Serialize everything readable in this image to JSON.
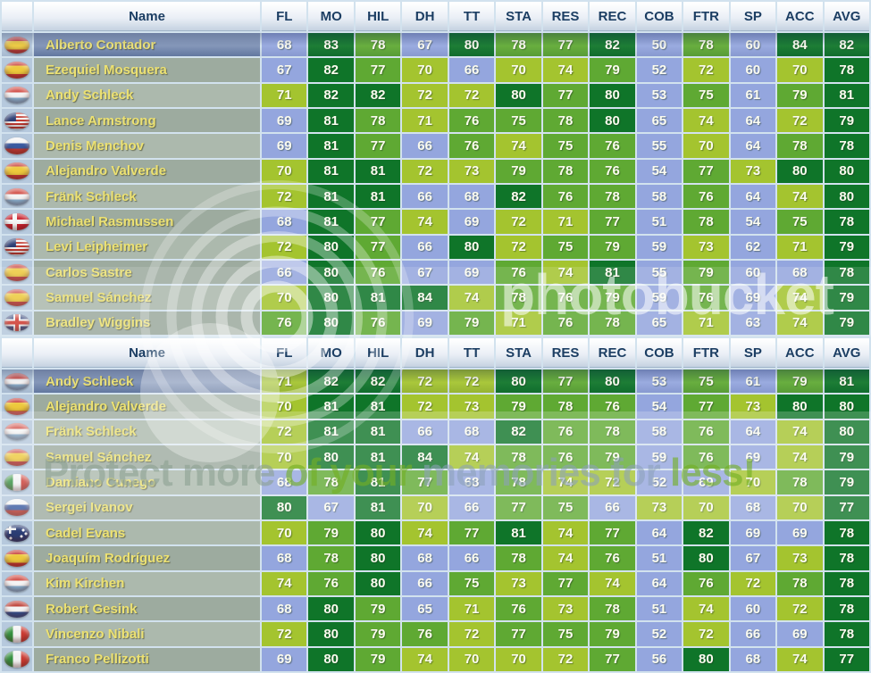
{
  "columns": [
    "Name",
    "FL",
    "MO",
    "HIL",
    "DH",
    "TT",
    "STA",
    "RES",
    "REC",
    "COB",
    "FTR",
    "SP",
    "ACC",
    "AVG"
  ],
  "stat_color_scale": [
    {
      "min": 80,
      "color": "#0f7529"
    },
    {
      "min": 75,
      "color": "#5fa933"
    },
    {
      "min": 70,
      "color": "#a4c42f"
    },
    {
      "min": 0,
      "color": "#94a6de"
    }
  ],
  "avg_column_color": "#0f7529",
  "ui_colors": {
    "header_text": "#1c3e63",
    "rider_name_text": "#ece172",
    "stat_text": "#fbfbef",
    "flag_column_bg": "#b6c9dd",
    "name_bg_light": "#acb9ad",
    "name_bg_dark": "#9dab9f",
    "selected_name_gradient_top": "#93a5c4",
    "selected_name_gradient_bottom": "#6a80a8",
    "grid_line": "#d2e2ee"
  },
  "tables": [
    {
      "rows": [
        {
          "rider": "Alberto Contador",
          "flag": "es",
          "selected": true,
          "stats": [
            68,
            83,
            78,
            67,
            80,
            78,
            77,
            82,
            50,
            78,
            60,
            84,
            82
          ]
        },
        {
          "rider": "Ezequiel Mosquera",
          "flag": "es",
          "selected": false,
          "stats": [
            67,
            82,
            77,
            70,
            66,
            70,
            74,
            79,
            52,
            72,
            60,
            70,
            78
          ]
        },
        {
          "rider": "Andy Schleck",
          "flag": "lu",
          "selected": false,
          "stats": [
            71,
            82,
            82,
            72,
            72,
            80,
            77,
            80,
            53,
            75,
            61,
            79,
            81
          ]
        },
        {
          "rider": "Lance Armstrong",
          "flag": "us",
          "selected": false,
          "stats": [
            69,
            81,
            78,
            71,
            76,
            75,
            78,
            80,
            65,
            74,
            64,
            72,
            79
          ]
        },
        {
          "rider": "Denis Menchov",
          "flag": "ru",
          "selected": false,
          "stats": [
            69,
            81,
            77,
            66,
            76,
            74,
            75,
            76,
            55,
            70,
            64,
            78,
            78
          ]
        },
        {
          "rider": "Alejandro Valverde",
          "flag": "es",
          "selected": false,
          "stats": [
            70,
            81,
            81,
            72,
            73,
            79,
            78,
            76,
            54,
            77,
            73,
            80,
            80
          ]
        },
        {
          "rider": "Fränk Schleck",
          "flag": "lu",
          "selected": false,
          "stats": [
            72,
            81,
            81,
            66,
            68,
            82,
            76,
            78,
            58,
            76,
            64,
            74,
            80
          ]
        },
        {
          "rider": "Michael Rasmussen",
          "flag": "dk",
          "selected": false,
          "stats": [
            68,
            81,
            77,
            74,
            69,
            72,
            71,
            77,
            51,
            78,
            54,
            75,
            78
          ]
        },
        {
          "rider": "Levi Leipheimer",
          "flag": "us",
          "selected": false,
          "stats": [
            72,
            80,
            77,
            66,
            80,
            72,
            75,
            79,
            59,
            73,
            62,
            71,
            79
          ]
        },
        {
          "rider": "Carlos Sastre",
          "flag": "es",
          "selected": false,
          "stats": [
            66,
            80,
            76,
            67,
            69,
            76,
            74,
            81,
            55,
            79,
            60,
            68,
            78
          ]
        },
        {
          "rider": "Samuel Sánchez",
          "flag": "es",
          "selected": false,
          "stats": [
            70,
            80,
            81,
            84,
            74,
            78,
            76,
            79,
            59,
            76,
            69,
            74,
            79
          ]
        },
        {
          "rider": "Bradley Wiggins",
          "flag": "gb",
          "selected": false,
          "stats": [
            76,
            80,
            76,
            69,
            79,
            71,
            76,
            78,
            65,
            71,
            63,
            74,
            79
          ]
        }
      ]
    },
    {
      "rows": [
        {
          "rider": "Andy Schleck",
          "flag": "lu",
          "selected": true,
          "stats": [
            71,
            82,
            82,
            72,
            72,
            80,
            77,
            80,
            53,
            75,
            61,
            79,
            81
          ]
        },
        {
          "rider": "Alejandro Valverde",
          "flag": "es",
          "selected": false,
          "stats": [
            70,
            81,
            81,
            72,
            73,
            79,
            78,
            76,
            54,
            77,
            73,
            80,
            80
          ]
        },
        {
          "rider": "Fränk Schleck",
          "flag": "lu",
          "selected": false,
          "stats": [
            72,
            81,
            81,
            66,
            68,
            82,
            76,
            78,
            58,
            76,
            64,
            74,
            80
          ]
        },
        {
          "rider": "Samuel Sánchez",
          "flag": "es",
          "selected": false,
          "stats": [
            70,
            80,
            81,
            84,
            74,
            78,
            76,
            79,
            59,
            76,
            69,
            74,
            79
          ]
        },
        {
          "rider": "Damiano Cunego",
          "flag": "it",
          "selected": false,
          "stats": [
            68,
            78,
            81,
            77,
            68,
            78,
            74,
            72,
            52,
            69,
            70,
            78,
            79
          ]
        },
        {
          "rider": "Sergei Ivanov",
          "flag": "ru",
          "selected": false,
          "stats": [
            80,
            67,
            81,
            70,
            66,
            77,
            75,
            66,
            73,
            70,
            68,
            70,
            77
          ]
        },
        {
          "rider": "Cadel Evans",
          "flag": "au",
          "selected": false,
          "stats": [
            70,
            79,
            80,
            74,
            77,
            81,
            74,
            77,
            64,
            82,
            69,
            69,
            78
          ]
        },
        {
          "rider": "Joaquím Rodríguez",
          "flag": "es",
          "selected": false,
          "stats": [
            68,
            78,
            80,
            68,
            66,
            78,
            74,
            76,
            51,
            80,
            67,
            73,
            78
          ]
        },
        {
          "rider": "Kim Kirchen",
          "flag": "lu",
          "selected": false,
          "stats": [
            74,
            76,
            80,
            66,
            75,
            73,
            77,
            74,
            64,
            76,
            72,
            78,
            78
          ]
        },
        {
          "rider": "Robert Gesink",
          "flag": "nl",
          "selected": false,
          "stats": [
            68,
            80,
            79,
            65,
            71,
            76,
            73,
            78,
            51,
            74,
            60,
            72,
            78
          ]
        },
        {
          "rider": "Vincenzo Nibali",
          "flag": "it",
          "selected": false,
          "stats": [
            72,
            80,
            79,
            76,
            72,
            77,
            75,
            79,
            52,
            72,
            66,
            69,
            78
          ]
        },
        {
          "rider": "Franco Pellizotti",
          "flag": "it",
          "selected": false,
          "stats": [
            69,
            80,
            79,
            74,
            70,
            70,
            72,
            77,
            56,
            80,
            68,
            74,
            77
          ]
        }
      ]
    }
  ],
  "watermark": {
    "logo_text": "photobucket",
    "tagline_segments": [
      {
        "text": "Protect more ",
        "tone": "grey"
      },
      {
        "text": "of your ",
        "tone": "green"
      },
      {
        "text": "memories ",
        "tone": "blue"
      },
      {
        "text": "for ",
        "tone": "blue"
      },
      {
        "text": "less!",
        "tone": "green"
      }
    ]
  }
}
